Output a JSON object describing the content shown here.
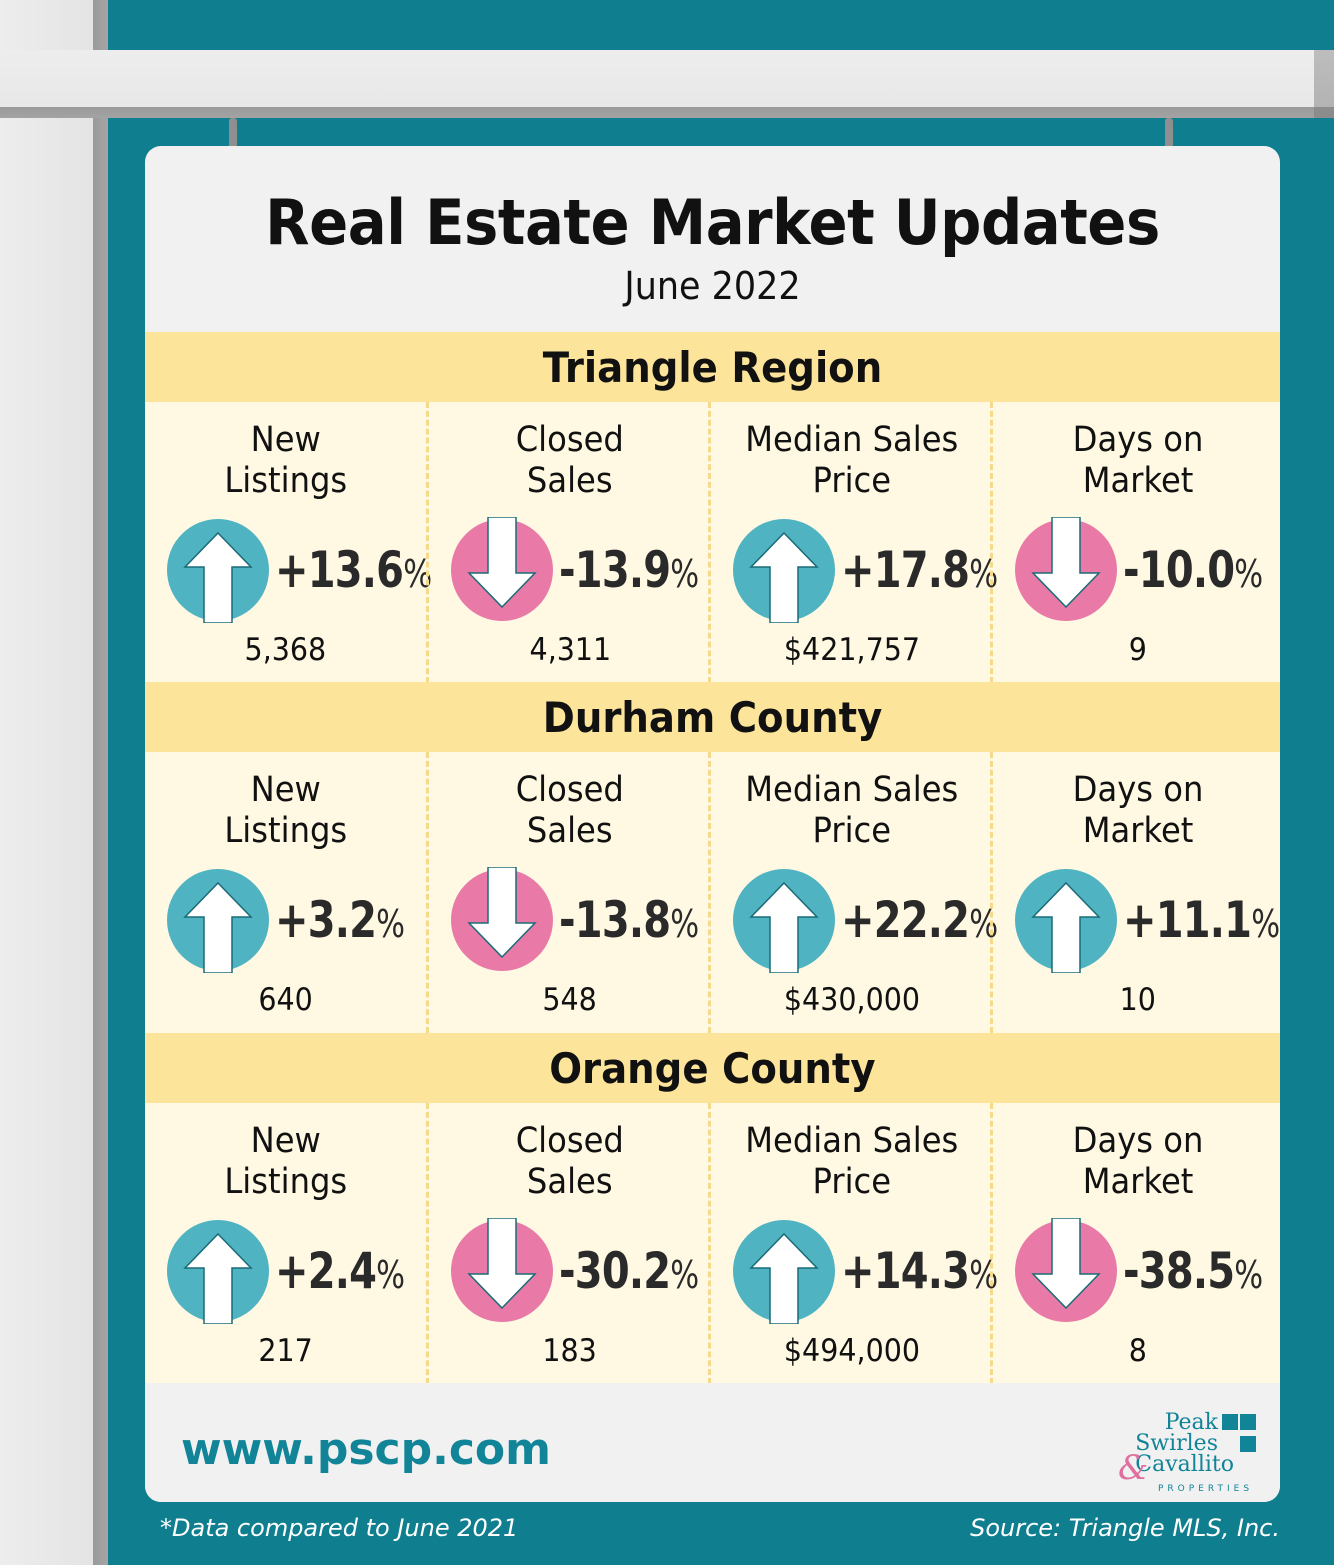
{
  "header": {
    "title": "Real Estate Market Updates",
    "subtitle": "June 2022"
  },
  "colors": {
    "up": "#4fb3c2",
    "down": "#e97aa8",
    "teal": "#0f7e8e",
    "gold": "#fce49a"
  },
  "regions": [
    {
      "name": "Triangle Region",
      "metrics": [
        {
          "label": "New\nListings",
          "direction": "up",
          "change": "+13.6",
          "value": "5,368"
        },
        {
          "label": "Closed\nSales",
          "direction": "down",
          "change": "-13.9",
          "value": "4,311"
        },
        {
          "label": "Median Sales\nPrice",
          "direction": "up",
          "change": "+17.8",
          "value": "$421,757"
        },
        {
          "label": "Days on\nMarket",
          "direction": "down",
          "change": "-10.0",
          "value": "9"
        }
      ]
    },
    {
      "name": "Durham County",
      "metrics": [
        {
          "label": "New\nListings",
          "direction": "up",
          "change": "+3.2",
          "value": "640"
        },
        {
          "label": "Closed\nSales",
          "direction": "down",
          "change": "-13.8",
          "value": "548"
        },
        {
          "label": "Median Sales\nPrice",
          "direction": "up",
          "change": "+22.2",
          "value": "$430,000"
        },
        {
          "label": "Days on\nMarket",
          "direction": "up",
          "change": "+11.1",
          "value": "10"
        }
      ]
    },
    {
      "name": "Orange County",
      "metrics": [
        {
          "label": "New\nListings",
          "direction": "up",
          "change": "+2.4",
          "value": "217"
        },
        {
          "label": "Closed\nSales",
          "direction": "down",
          "change": "-30.2",
          "value": "183"
        },
        {
          "label": "Median Sales\nPrice",
          "direction": "up",
          "change": "+14.3",
          "value": "$494,000"
        },
        {
          "label": "Days on\nMarket",
          "direction": "down",
          "change": "-38.5",
          "value": "8"
        }
      ]
    }
  ],
  "percent_sign": "%",
  "footer": {
    "website": "www.pscp.com",
    "logo_lines": [
      "Peak",
      "Swirles",
      "Cavallito"
    ],
    "logo_amp": "&",
    "logo_sub": "PROPERTIES",
    "footnote": "*Data compared to June 2021",
    "source": "Source: Triangle MLS, Inc."
  }
}
